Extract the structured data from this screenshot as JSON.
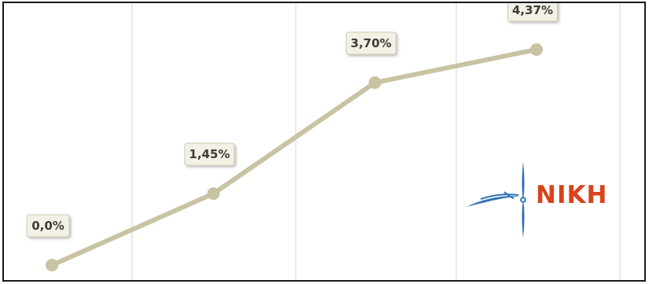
{
  "chart_data": {
    "type": "line",
    "title": "",
    "xlabel": "",
    "ylabel": "",
    "x": [
      0,
      1,
      2,
      3
    ],
    "ylim": [
      0,
      4.37
    ],
    "grid": "vertical",
    "legend": "none",
    "series": [
      {
        "values": [
          0.0,
          1.45,
          3.7,
          4.37
        ],
        "labels": [
          "0,0%",
          "1,45%",
          "3,70%",
          "4,37%"
        ],
        "color": "#c8c4a3"
      }
    ]
  },
  "logo": {
    "text": "NIKH",
    "text_color": "#d8431c",
    "mark_color": "#2f72b8"
  }
}
